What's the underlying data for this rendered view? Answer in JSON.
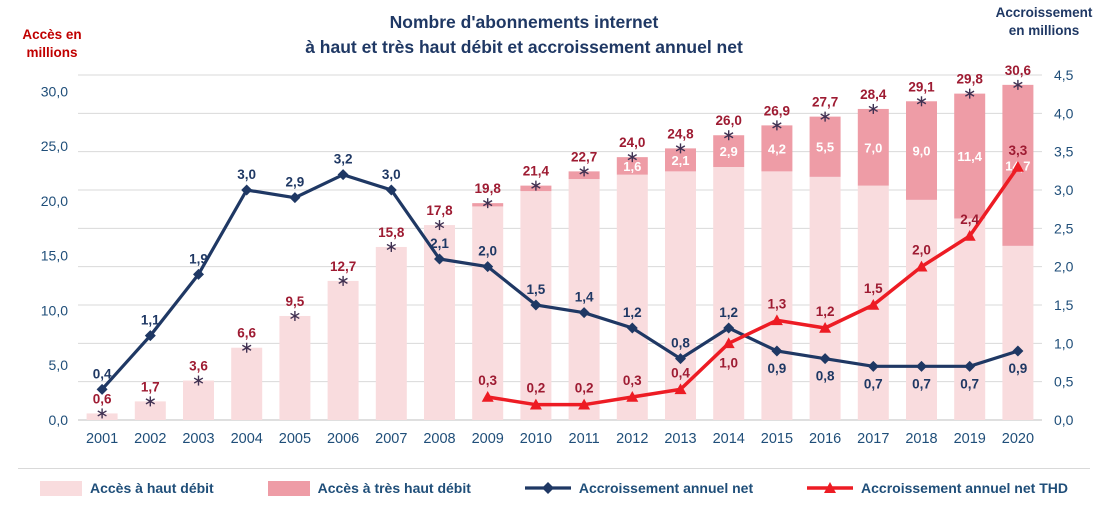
{
  "title": {
    "line1": "Nombre d'abonnements internet",
    "line2": "à haut et très haut débit et accroissement annuel net"
  },
  "left_axis": {
    "title_line1": "Accès en",
    "title_line2": "millions",
    "tick_labels": [
      "0,0",
      "5,0",
      "10,0",
      "15,0",
      "20,0",
      "25,0",
      "30,0"
    ],
    "tick_values": [
      0,
      5,
      10,
      15,
      20,
      25,
      30
    ],
    "max": 31.5
  },
  "right_axis": {
    "title_line1": "Accroissement",
    "title_line2": "en millions",
    "tick_labels": [
      "0,0",
      "0,5",
      "1,0",
      "1,5",
      "2,0",
      "2,5",
      "3,0",
      "3,5",
      "4,0",
      "4,5"
    ],
    "tick_values": [
      0,
      0.5,
      1,
      1.5,
      2,
      2.5,
      3,
      3.5,
      4,
      4.5
    ],
    "max": 4.5
  },
  "chart_data": {
    "type": "bar",
    "subtype": "stacked-bars-with-two-lines",
    "title": "Nombre d'abonnements internet à haut et très haut débit et accroissement annuel net",
    "xlabel": "",
    "ylabel_left": "Accès en millions",
    "ylabel_right": "Accroissement en millions",
    "ylim_left": [
      0,
      31.5
    ],
    "ylim_right": [
      0,
      4.5
    ],
    "grid": true,
    "legend_position": "bottom",
    "categories": [
      "2001",
      "2002",
      "2003",
      "2004",
      "2005",
      "2006",
      "2007",
      "2008",
      "2009",
      "2010",
      "2011",
      "2012",
      "2013",
      "2014",
      "2015",
      "2016",
      "2017",
      "2018",
      "2019",
      "2020"
    ],
    "series": [
      {
        "name": "Accès à haut débit",
        "type": "bar",
        "stack": "bottom",
        "axis": "left",
        "values": [
          0.6,
          1.7,
          3.6,
          6.6,
          9.5,
          12.7,
          15.8,
          17.8,
          19.5,
          20.9,
          22.0,
          22.4,
          22.7,
          23.1,
          22.7,
          22.2,
          21.4,
          20.1,
          18.4,
          15.9
        ]
      },
      {
        "name": "Accès à très haut débit",
        "type": "bar",
        "stack": "top",
        "axis": "left",
        "values": [
          0,
          0,
          0,
          0,
          0,
          0,
          0,
          0,
          0.3,
          0.5,
          0.7,
          1.6,
          2.1,
          2.9,
          4.2,
          5.5,
          7.0,
          9.0,
          11.4,
          14.7
        ]
      },
      {
        "name": "Accroissement annuel net",
        "type": "line",
        "marker": "diamond",
        "axis": "right",
        "values": [
          0.4,
          1.1,
          1.9,
          3.0,
          2.9,
          3.2,
          3.0,
          2.1,
          2.0,
          1.5,
          1.4,
          1.2,
          0.8,
          1.2,
          0.9,
          0.8,
          0.7,
          0.7,
          0.7,
          0.9
        ]
      },
      {
        "name": "Accroissement annuel net THD",
        "type": "line",
        "marker": "triangle",
        "axis": "right",
        "values": [
          null,
          null,
          null,
          null,
          null,
          null,
          null,
          null,
          0.3,
          0.2,
          0.2,
          0.3,
          0.4,
          1.0,
          1.3,
          1.2,
          1.5,
          2.0,
          2.4,
          3.3
        ]
      }
    ],
    "total_labels": [
      "0,6",
      "1,7",
      "3,6",
      "6,6",
      "9,5",
      "12,7",
      "15,8",
      "17,8",
      "19,8",
      "21,4",
      "22,7",
      "24,0",
      "24,8",
      "26,0",
      "26,9",
      "27,7",
      "28,4",
      "29,1",
      "29,8",
      "30,6"
    ],
    "thd_inner_labels": [
      null,
      null,
      null,
      null,
      null,
      null,
      null,
      null,
      null,
      null,
      null,
      "1,6",
      "2,1",
      "2,9",
      "4,2",
      "5,5",
      "7,0",
      "9,0",
      "11,4",
      "14,7"
    ],
    "navy_point_labels": [
      "0,4",
      "1,1",
      "1,9",
      "3,0",
      "2,9",
      "3,2",
      "3,0",
      "2,1",
      "2,0",
      "1,5",
      "1,4",
      "1,2",
      "0,8",
      "1,2",
      "0,9",
      "0,8",
      "0,7",
      "0,7",
      "0,7",
      "0,9"
    ],
    "red_point_labels": [
      null,
      null,
      null,
      null,
      null,
      null,
      null,
      null,
      "0,3",
      "0,2",
      "0,2",
      "0,3",
      "0,4",
      "1,0",
      "1,3",
      "1,2",
      "1,5",
      "2,0",
      "2,4",
      "3,3"
    ]
  },
  "legend": {
    "items": [
      {
        "label": "Accès à haut débit"
      },
      {
        "label": "Accès à très haut débit"
      },
      {
        "label": "Accroissement annuel net"
      },
      {
        "label": "Accroissement annuel net THD"
      }
    ]
  },
  "colors": {
    "bar_light": "#f9dcde",
    "bar_dark": "#ee9ca6",
    "line_navy": "#1F3864",
    "line_red": "#ED1C24",
    "label_dark_red": "#9E1B32",
    "label_navy": "#1F3864",
    "axis_text": "#1F4E79",
    "grid": "#D9D9D9",
    "axis_line": "#BFBFBF",
    "marker_star": "#403152",
    "title": "#1F3864",
    "left_axis_title": "#C00000"
  }
}
